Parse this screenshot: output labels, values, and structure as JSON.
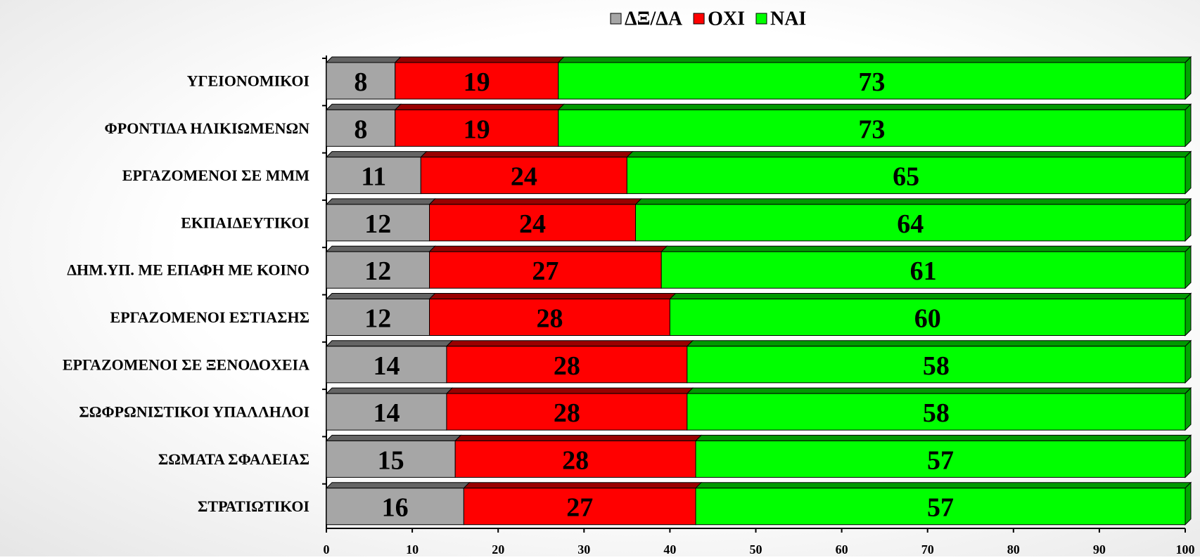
{
  "chart_data": {
    "type": "stacked-bar-horizontal",
    "categories": [
      "ΥΓΕΙΟΝΟΜΙΚΟΙ",
      "ΦΡΟΝΤΙΔΑ ΗΛΙΚΙΩΜΕΝΩΝ",
      "ΕΡΓΑΖΟΜΕΝΟΙ ΣΕ ΜΜΜ",
      "ΕΚΠΑΙΔΕΥΤΙΚΟΙ",
      "ΔΗΜ.ΥΠ. ΜΕ ΕΠΑΦΗ ΜΕ ΚΟΙΝΟ",
      "ΕΡΓΑΖΟΜΕΝΟΙ ΕΣΤΙΑΣΗΣ",
      "ΕΡΓΑΖΟΜΕΝΟΙ ΣΕ ΞΕΝΟΔΟΧΕΙΑ",
      "ΣΩΦΡΩΝΙΣΤΙΚΟΙ ΥΠΑΛΛΗΛΟΙ",
      "ΣΩΜΑΤΑ ΣΦΑΛΕΙΑΣ",
      "ΣΤΡΑΤΙΩΤΙΚΟΙ"
    ],
    "series": [
      {
        "name": "ΔΞ/ΔΑ",
        "color": "#a6a6a6",
        "values": [
          8,
          8,
          11,
          12,
          12,
          12,
          14,
          14,
          15,
          16
        ]
      },
      {
        "name": "ΟΧΙ",
        "color": "#ff0000",
        "values": [
          19,
          19,
          24,
          24,
          27,
          28,
          28,
          28,
          28,
          27
        ]
      },
      {
        "name": "ΝΑΙ",
        "color": "#00ff00",
        "values": [
          73,
          73,
          65,
          64,
          61,
          60,
          58,
          58,
          57,
          57
        ]
      }
    ],
    "xlim": [
      0,
      100
    ],
    "xticks": [
      0,
      10,
      20,
      30,
      40,
      50,
      60,
      70,
      80,
      90,
      100
    ],
    "legend": "top"
  }
}
